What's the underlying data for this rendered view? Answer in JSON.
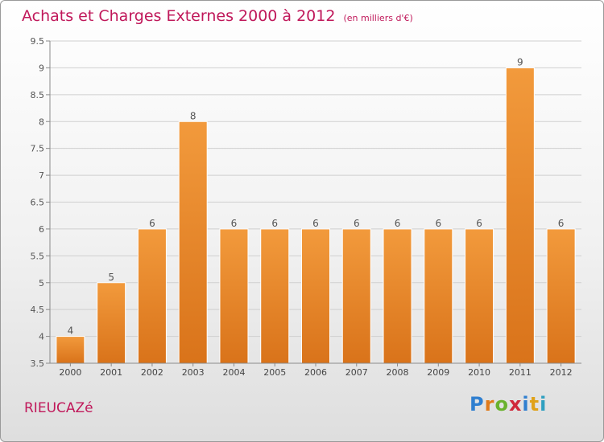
{
  "header": {
    "title": "Achats et Charges Externes 2000 à 2012",
    "subtitle": "(en milliers d'€)"
  },
  "footer": {
    "commune": "RIEUCAZé",
    "logo_text": "Proxiti",
    "logo_letters": [
      {
        "char": "P",
        "color": "#2f7fd0"
      },
      {
        "char": "r",
        "color": "#e07a1a"
      },
      {
        "char": "o",
        "color": "#6ab22e"
      },
      {
        "char": "x",
        "color": "#d0283a"
      },
      {
        "char": "i",
        "color": "#2f7fd0"
      },
      {
        "char": "t",
        "color": "#e0a21a"
      },
      {
        "char": "i",
        "color": "#2fa0c0"
      }
    ]
  },
  "chart_data": {
    "type": "bar",
    "categories": [
      "2000",
      "2001",
      "2002",
      "2003",
      "2004",
      "2005",
      "2006",
      "2007",
      "2008",
      "2009",
      "2010",
      "2011",
      "2012"
    ],
    "values": [
      4,
      5,
      6,
      8,
      6,
      6,
      6,
      6,
      6,
      6,
      6,
      9,
      6
    ],
    "data_labels": [
      "4",
      "5",
      "6",
      "8",
      "6",
      "6",
      "6",
      "6",
      "6",
      "6",
      "6",
      "9",
      "6"
    ],
    "ylim": [
      3.5,
      9.5
    ],
    "yticks": [
      3.5,
      4,
      4.5,
      5,
      5.5,
      6,
      6.5,
      7,
      7.5,
      8,
      8.5,
      9,
      9.5
    ],
    "ytick_labels": [
      "3.5",
      "4",
      "4.5",
      "5",
      "5.5",
      "6",
      "6.5",
      "7",
      "7.5",
      "8",
      "8.5",
      "9",
      "9.5"
    ],
    "grid": true,
    "bar_color": "#f29a3c",
    "bar_color_dark": "#d9731a"
  }
}
